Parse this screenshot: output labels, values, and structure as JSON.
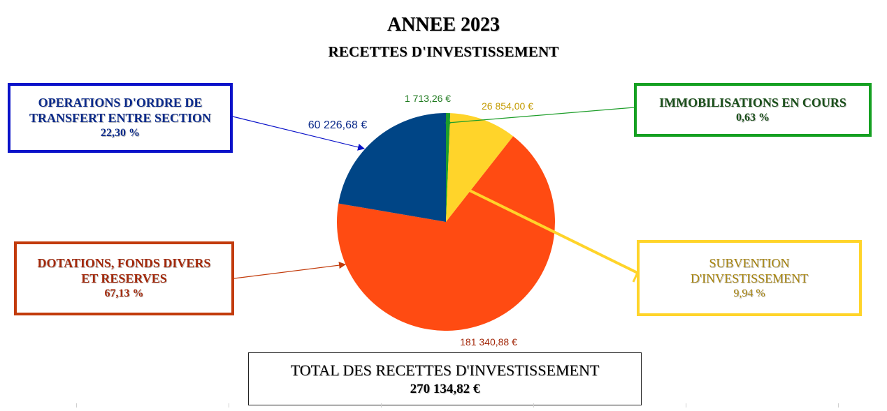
{
  "title": "ANNEE 2023",
  "subtitle": "RECETTES D'INVESTISSEMENT",
  "chart_data": {
    "type": "pie",
    "currency": "€",
    "slices": [
      {
        "key": "immo",
        "label_lines": [
          "IMMOBILISATIONS EN COURS"
        ],
        "percent_text": "0,63  %",
        "value": 1713.26,
        "value_text": "1 713,26 €",
        "color": "#1e9e2a"
      },
      {
        "key": "subvention",
        "label_lines": [
          "SUBVENTION",
          "D'INVESTISSEMENT"
        ],
        "percent_text": "9,94 %",
        "value": 26854.0,
        "value_text": "26 854,00 €",
        "color": "#ffd42a"
      },
      {
        "key": "dotations",
        "label_lines": [
          "DOTATIONS, FONDS DIVERS",
          "ET RESERVES"
        ],
        "percent_text": "67,13 %",
        "value": 181340.88,
        "value_text": "181 340,88 €",
        "color": "#ff4b12"
      },
      {
        "key": "ordre",
        "label_lines": [
          "OPERATIONS D'ORDRE DE",
          "TRANSFERT ENTRE SECTION"
        ],
        "percent_text": "22,30 %",
        "value": 60226.68,
        "value_text": "60 226,68 €",
        "color": "#004586"
      }
    ]
  },
  "total": {
    "label": "TOTAL DES RECETTES D'INVESTISSEMENT",
    "value": "270 134,82 €"
  },
  "colors": {
    "ordre_border": "#0a12c9",
    "immo_border": "#15a022",
    "dotations_border": "#c23b0b",
    "subvention_border": "#ffd42a"
  }
}
